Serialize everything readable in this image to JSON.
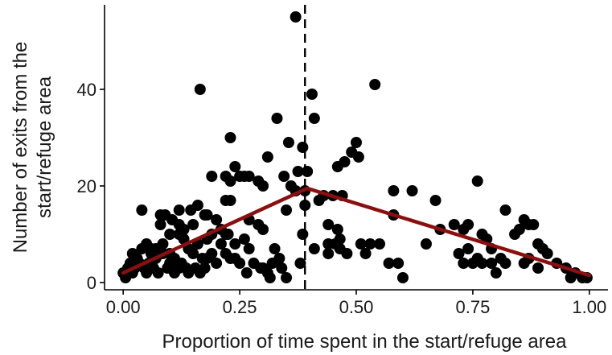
{
  "chart_data": {
    "type": "scatter",
    "title": "",
    "xlabel": "Proportion of time spent in the start/refuge area",
    "ylabel_lines": [
      "Number of exits from the",
      "start/refuge area"
    ],
    "xlim": [
      -0.04,
      1.04
    ],
    "ylim": [
      -1.5,
      57.5
    ],
    "x_ticks": [
      0.0,
      0.25,
      0.5,
      0.75,
      1.0
    ],
    "x_tick_labels": [
      "0.00",
      "0.25",
      "0.50",
      "0.75",
      "1.00"
    ],
    "y_ticks": [
      0,
      20,
      40
    ],
    "y_tick_labels": [
      "0",
      "20",
      "40"
    ],
    "grid": false,
    "legend": "none",
    "threshold_x": 0.39,
    "fit_line": {
      "color": "#8b0f0f",
      "x": [
        0.0,
        0.395,
        1.0
      ],
      "y": [
        2.0,
        19.5,
        1.5
      ]
    },
    "point_color": "#000000",
    "points": [
      [
        0.37,
        55
      ],
      [
        0.165,
        40
      ],
      [
        0.54,
        41
      ],
      [
        0.405,
        39
      ],
      [
        0.41,
        34
      ],
      [
        0.33,
        34
      ],
      [
        0.23,
        30
      ],
      [
        0.355,
        29
      ],
      [
        0.5,
        29
      ],
      [
        0.385,
        28
      ],
      [
        0.49,
        27
      ],
      [
        0.505,
        26
      ],
      [
        0.31,
        26
      ],
      [
        0.475,
        25
      ],
      [
        0.46,
        24
      ],
      [
        0.24,
        24
      ],
      [
        0.375,
        23
      ],
      [
        0.395,
        23
      ],
      [
        0.22,
        22
      ],
      [
        0.25,
        22
      ],
      [
        0.26,
        22
      ],
      [
        0.27,
        22
      ],
      [
        0.19,
        22
      ],
      [
        0.345,
        22
      ],
      [
        0.23,
        21
      ],
      [
        0.29,
        21
      ],
      [
        0.3,
        20
      ],
      [
        0.76,
        21
      ],
      [
        0.36,
        20
      ],
      [
        0.37,
        19
      ],
      [
        0.39,
        19
      ],
      [
        0.43,
        18
      ],
      [
        0.45,
        18
      ],
      [
        0.47,
        18
      ],
      [
        0.42,
        17
      ],
      [
        0.23,
        17
      ],
      [
        0.22,
        17
      ],
      [
        0.58,
        19
      ],
      [
        0.62,
        19
      ],
      [
        0.67,
        17
      ],
      [
        0.39,
        16
      ],
      [
        0.35,
        15
      ],
      [
        0.16,
        16
      ],
      [
        0.12,
        15
      ],
      [
        0.145,
        15
      ],
      [
        0.175,
        14
      ],
      [
        0.18,
        14
      ],
      [
        0.04,
        15
      ],
      [
        0.08,
        14
      ],
      [
        0.09,
        14
      ],
      [
        0.105,
        13
      ],
      [
        0.12,
        12
      ],
      [
        0.2,
        13
      ],
      [
        0.27,
        13
      ],
      [
        0.29,
        12
      ],
      [
        0.15,
        12
      ],
      [
        0.08,
        12
      ],
      [
        0.13,
        11
      ],
      [
        0.44,
        12
      ],
      [
        0.58,
        14
      ],
      [
        0.71,
        12
      ],
      [
        0.74,
        12
      ],
      [
        0.73,
        11
      ],
      [
        0.82,
        15
      ],
      [
        0.86,
        13
      ],
      [
        0.87,
        12
      ],
      [
        0.88,
        12
      ],
      [
        0.85,
        11
      ],
      [
        0.84,
        10
      ],
      [
        0.19,
        10
      ],
      [
        0.21,
        11
      ],
      [
        0.22,
        10
      ],
      [
        0.1,
        10
      ],
      [
        0.12,
        10
      ],
      [
        0.13,
        9
      ],
      [
        0.16,
        8
      ],
      [
        0.05,
        8
      ],
      [
        0.06,
        7
      ],
      [
        0.07,
        7
      ],
      [
        0.085,
        6
      ],
      [
        0.1,
        6
      ],
      [
        0.11,
        5
      ],
      [
        0.14,
        7
      ],
      [
        0.15,
        6
      ],
      [
        0.225,
        10
      ],
      [
        0.24,
        8
      ],
      [
        0.26,
        9
      ],
      [
        0.21,
        8
      ],
      [
        0.17,
        5
      ],
      [
        0.18,
        5
      ],
      [
        0.22,
        6
      ],
      [
        0.24,
        5
      ],
      [
        0.27,
        7
      ],
      [
        0.3,
        11
      ],
      [
        0.325,
        7
      ],
      [
        0.335,
        5
      ],
      [
        0.385,
        10
      ],
      [
        0.46,
        11
      ],
      [
        0.465,
        9
      ],
      [
        0.455,
        8
      ],
      [
        0.51,
        8
      ],
      [
        0.52,
        6
      ],
      [
        0.53,
        8
      ],
      [
        0.55,
        8
      ],
      [
        0.41,
        7
      ],
      [
        0.44,
        8
      ],
      [
        0.465,
        7
      ],
      [
        0.57,
        4
      ],
      [
        0.59,
        4
      ],
      [
        0.6,
        1
      ],
      [
        0.65,
        8
      ],
      [
        0.68,
        11
      ],
      [
        0.77,
        10
      ],
      [
        0.78,
        9
      ],
      [
        0.79,
        7
      ],
      [
        0.74,
        7
      ],
      [
        0.76,
        5
      ],
      [
        0.79,
        4
      ],
      [
        0.81,
        5
      ],
      [
        0.8,
        2
      ],
      [
        0.72,
        6
      ],
      [
        0.73,
        4
      ],
      [
        0.75,
        4
      ],
      [
        0.77,
        4
      ],
      [
        0.89,
        8
      ],
      [
        0.9,
        7
      ],
      [
        0.91,
        6
      ],
      [
        0.93,
        4
      ],
      [
        0.95,
        3
      ],
      [
        0.97,
        2
      ],
      [
        0.96,
        1
      ],
      [
        0.985,
        1
      ],
      [
        0.995,
        1
      ],
      [
        0.89,
        3
      ],
      [
        0.86,
        4
      ],
      [
        0.82,
        4
      ],
      [
        0.87,
        5
      ],
      [
        0.02,
        6
      ],
      [
        0.03,
        5
      ],
      [
        0.035,
        4
      ],
      [
        0.025,
        3
      ],
      [
        0.01,
        3
      ],
      [
        0.0,
        2
      ],
      [
        0.005,
        1
      ],
      [
        0.015,
        4
      ],
      [
        0.02,
        2
      ],
      [
        0.045,
        3
      ],
      [
        0.05,
        2
      ],
      [
        0.055,
        4
      ],
      [
        0.065,
        3
      ],
      [
        0.07,
        5
      ],
      [
        0.075,
        2
      ],
      [
        0.095,
        3
      ],
      [
        0.11,
        2
      ],
      [
        0.125,
        4
      ],
      [
        0.135,
        3
      ],
      [
        0.14,
        2
      ],
      [
        0.155,
        3
      ],
      [
        0.165,
        2
      ],
      [
        0.175,
        3
      ],
      [
        0.18,
        9
      ],
      [
        0.19,
        6
      ],
      [
        0.2,
        4
      ],
      [
        0.25,
        4
      ],
      [
        0.265,
        2
      ],
      [
        0.28,
        4
      ],
      [
        0.295,
        3
      ],
      [
        0.31,
        2
      ],
      [
        0.32,
        4
      ],
      [
        0.34,
        3
      ],
      [
        0.35,
        1
      ],
      [
        0.38,
        4
      ],
      [
        0.44,
        6
      ],
      [
        0.48,
        6
      ],
      [
        0.06,
        6
      ],
      [
        0.04,
        7
      ],
      [
        0.085,
        8
      ],
      [
        0.1,
        4
      ],
      [
        0.12,
        3
      ],
      [
        0.23,
        5
      ],
      [
        0.3,
        3
      ],
      [
        0.315,
        1
      ]
    ]
  }
}
